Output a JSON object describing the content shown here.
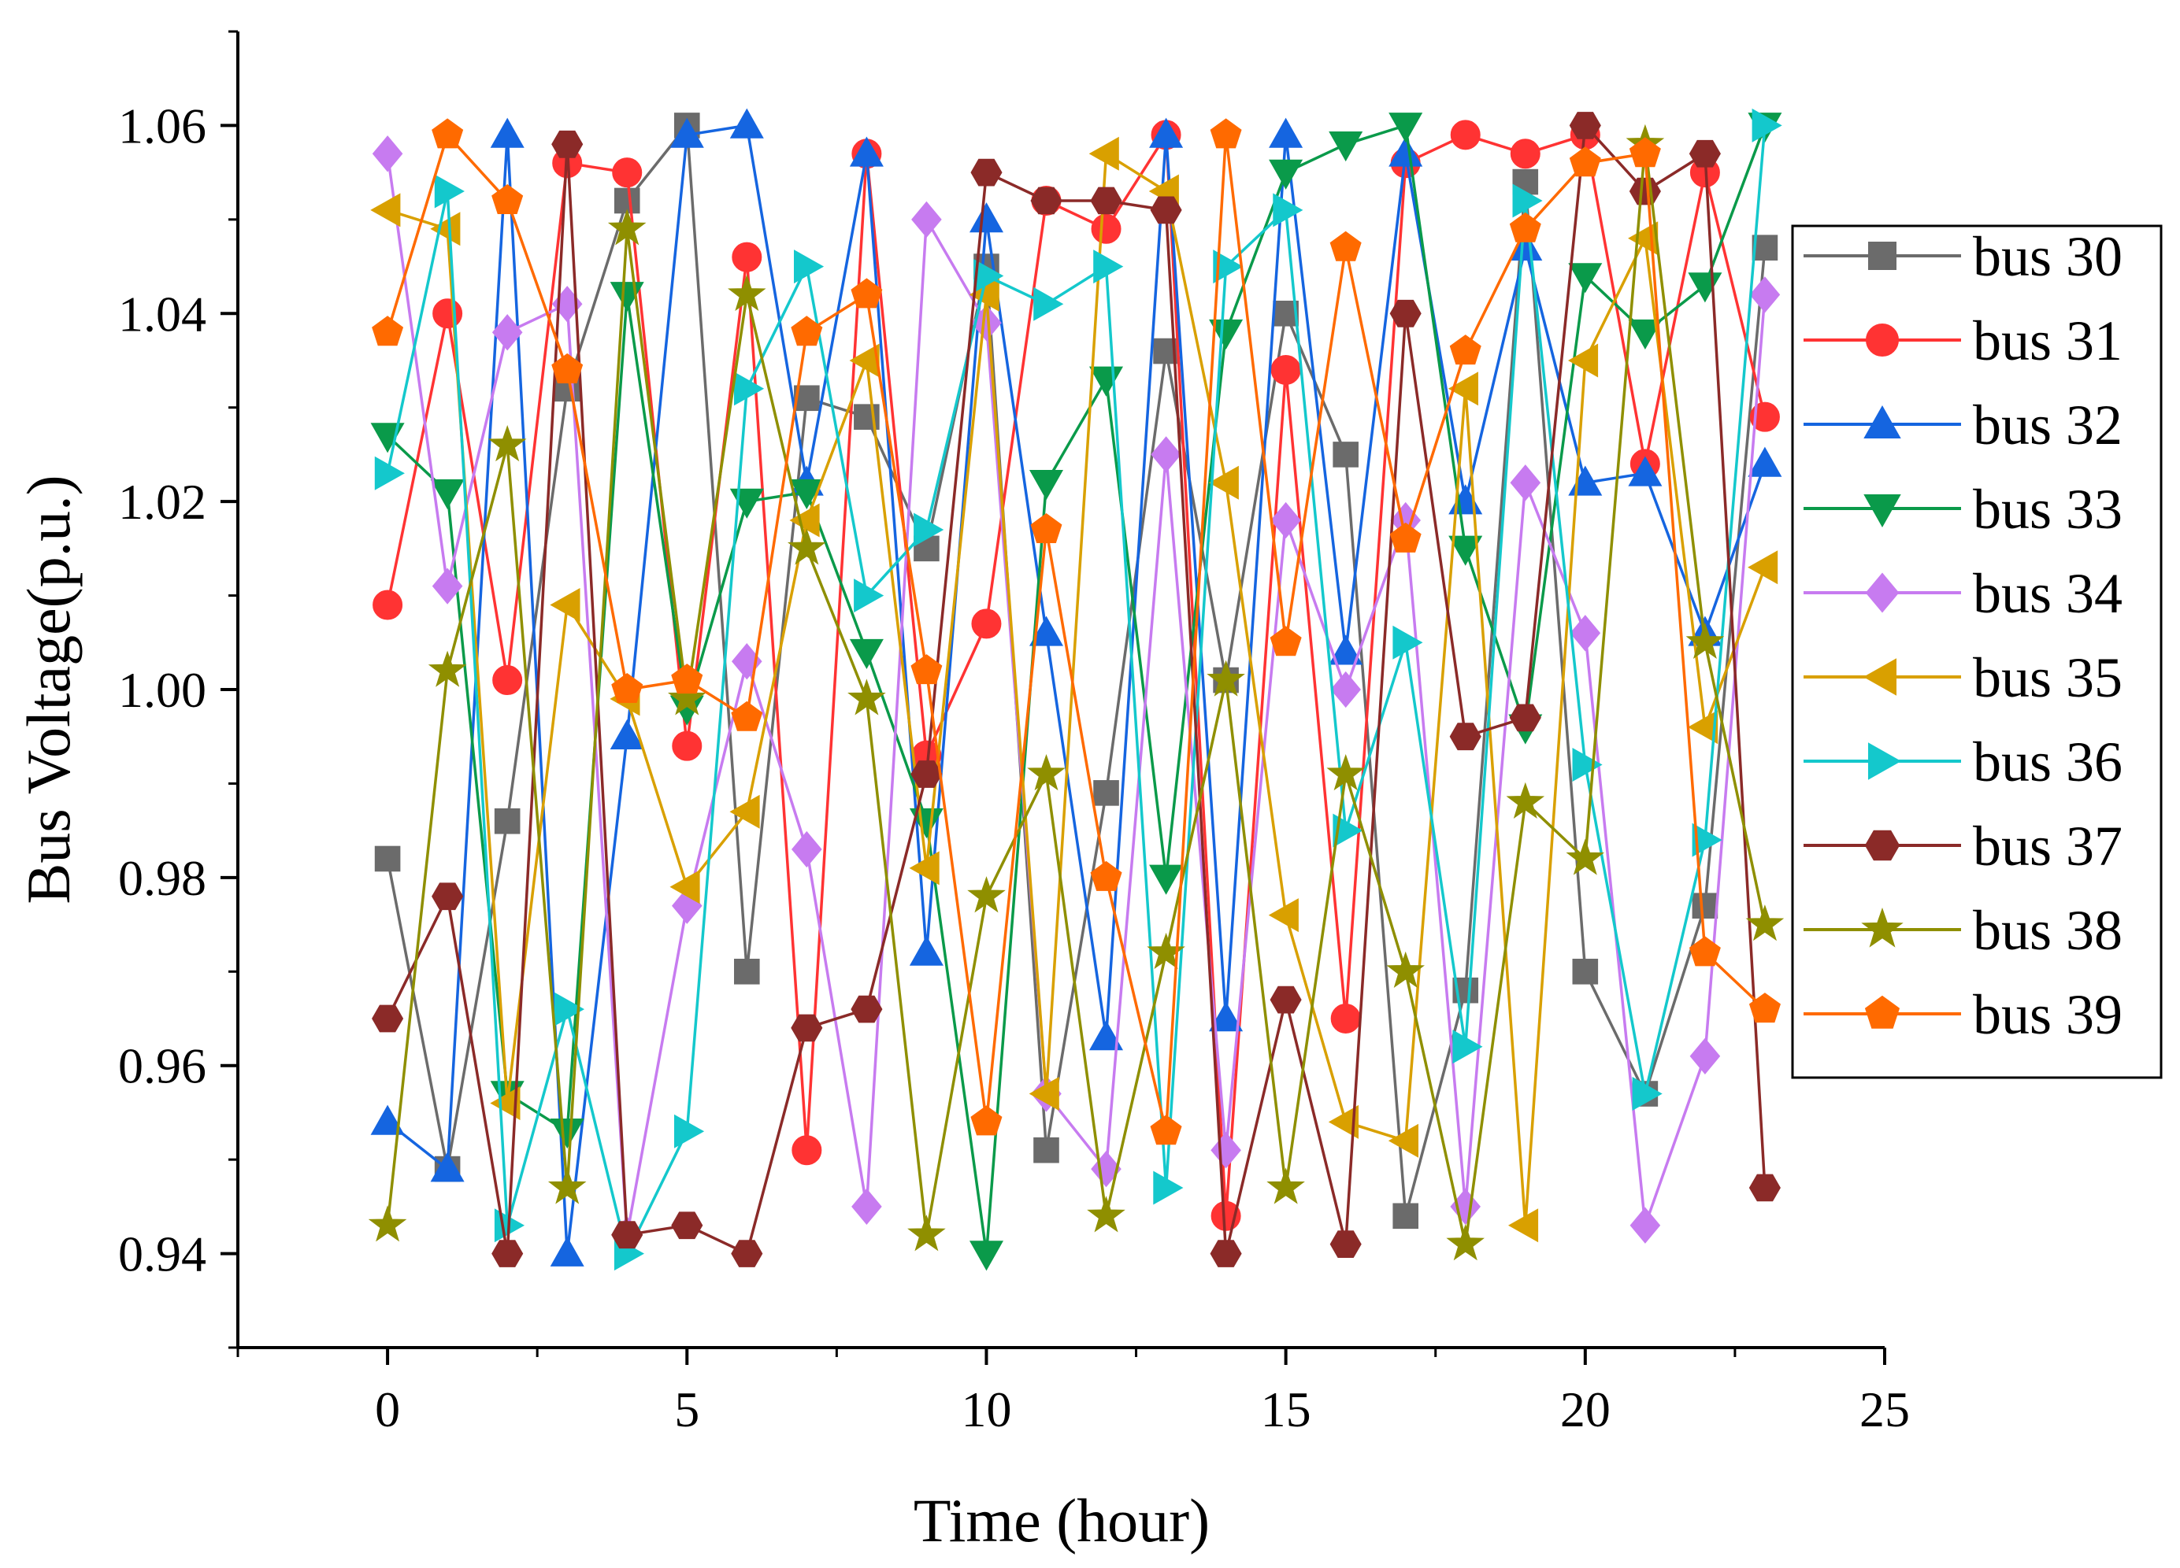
{
  "chart_data": {
    "type": "line",
    "title": "",
    "xlabel": "Time (hour)",
    "ylabel": "Bus Voltage(p.u.)",
    "xlim": [
      -2.5,
      25
    ],
    "ylim": [
      0.93,
      1.07
    ],
    "x_ticks": [
      0,
      5,
      10,
      15,
      20,
      25
    ],
    "y_ticks": [
      0.94,
      0.96,
      0.98,
      1.0,
      1.02,
      1.04,
      1.06
    ],
    "x_tick_labels": [
      "0",
      "5",
      "10",
      "15",
      "20",
      "25"
    ],
    "y_tick_labels": [
      "0.94",
      "0.96",
      "0.98",
      "1.00",
      "1.02",
      "1.04",
      "1.06"
    ],
    "grid": false,
    "legend_position": "right",
    "x": [
      0,
      1,
      2,
      3,
      4,
      5,
      6,
      7,
      8,
      9,
      10,
      11,
      12,
      13,
      14,
      15,
      16,
      17,
      18,
      19,
      20,
      21,
      22,
      23
    ],
    "series": [
      {
        "name": "bus 30",
        "color": "#6b6b6b",
        "marker": "square",
        "values": [
          0.982,
          0.949,
          0.986,
          1.032,
          1.052,
          1.06,
          0.97,
          1.031,
          1.029,
          1.015,
          1.045,
          0.951,
          0.989,
          1.036,
          1.001,
          1.04,
          1.025,
          0.944,
          0.968,
          1.054,
          0.97,
          0.957,
          0.977,
          1.047
        ]
      },
      {
        "name": "bus 31",
        "color": "#ff3333",
        "marker": "circle",
        "values": [
          1.009,
          1.04,
          1.001,
          1.056,
          1.055,
          0.994,
          1.046,
          0.951,
          1.057,
          0.993,
          1.007,
          1.052,
          1.049,
          1.059,
          0.944,
          1.034,
          0.965,
          1.056,
          1.059,
          1.057,
          1.059,
          1.024,
          1.055,
          1.029
        ]
      },
      {
        "name": "bus 32",
        "color": "#1565e0",
        "marker": "triangle-up",
        "values": [
          0.954,
          0.949,
          1.059,
          0.94,
          0.995,
          1.059,
          1.06,
          1.022,
          1.057,
          0.972,
          1.05,
          1.006,
          0.963,
          1.059,
          0.965,
          1.059,
          1.004,
          1.057,
          1.02,
          1.047,
          1.022,
          1.023,
          1.006,
          1.024
        ]
      },
      {
        "name": "bus 33",
        "color": "#0a9a4a",
        "marker": "triangle-down",
        "values": [
          1.027,
          1.021,
          0.957,
          0.953,
          1.042,
          0.998,
          1.02,
          1.021,
          1.004,
          0.986,
          0.94,
          1.022,
          1.033,
          0.98,
          1.038,
          1.055,
          1.058,
          1.06,
          1.015,
          0.996,
          1.044,
          1.038,
          1.043,
          1.06
        ]
      },
      {
        "name": "bus 34",
        "color": "#c77bf0",
        "marker": "diamond",
        "values": [
          1.057,
          1.011,
          1.038,
          1.041,
          0.942,
          0.977,
          1.003,
          0.983,
          0.945,
          1.05,
          1.039,
          0.957,
          0.949,
          1.025,
          0.951,
          1.018,
          1.0,
          1.018,
          0.945,
          1.022,
          1.006,
          0.943,
          0.961,
          1.042
        ]
      },
      {
        "name": "bus 35",
        "color": "#d9a000",
        "marker": "triangle-left",
        "values": [
          1.051,
          1.049,
          0.956,
          1.009,
          0.999,
          0.979,
          0.987,
          1.018,
          1.035,
          0.981,
          1.042,
          0.957,
          1.057,
          1.053,
          1.022,
          0.976,
          0.954,
          0.952,
          1.032,
          0.943,
          1.035,
          1.048,
          0.996,
          1.013
        ]
      },
      {
        "name": "bus 36",
        "color": "#14c8cc",
        "marker": "triangle-right",
        "values": [
          1.023,
          1.053,
          0.943,
          0.966,
          0.94,
          0.953,
          1.032,
          1.045,
          1.01,
          1.017,
          1.044,
          1.041,
          1.045,
          0.947,
          1.045,
          1.051,
          0.985,
          1.005,
          0.962,
          1.052,
          0.992,
          0.957,
          0.984,
          1.06
        ]
      },
      {
        "name": "bus 37",
        "color": "#8b2a28",
        "marker": "hexagon",
        "values": [
          0.965,
          0.978,
          0.94,
          1.058,
          0.942,
          0.943,
          0.94,
          0.964,
          0.966,
          0.991,
          1.055,
          1.052,
          1.052,
          1.051,
          0.94,
          0.967,
          0.941,
          1.04,
          0.995,
          0.997,
          1.06,
          1.053,
          1.057,
          0.947
        ]
      },
      {
        "name": "bus 38",
        "color": "#8f8f00",
        "marker": "star",
        "values": [
          0.943,
          1.002,
          1.026,
          0.947,
          1.049,
          0.999,
          1.042,
          1.015,
          0.999,
          0.942,
          0.978,
          0.991,
          0.944,
          0.972,
          1.001,
          0.947,
          0.991,
          0.97,
          0.941,
          0.988,
          0.982,
          1.058,
          1.005,
          0.975
        ]
      },
      {
        "name": "bus 39",
        "color": "#ff6a00",
        "marker": "pentagon",
        "values": [
          1.038,
          1.059,
          1.052,
          1.034,
          1.0,
          1.001,
          0.997,
          1.038,
          1.042,
          1.002,
          0.954,
          1.017,
          0.98,
          0.953,
          1.059,
          1.005,
          1.047,
          1.016,
          1.036,
          1.049,
          1.056,
          1.057,
          0.972,
          0.966
        ]
      }
    ]
  }
}
